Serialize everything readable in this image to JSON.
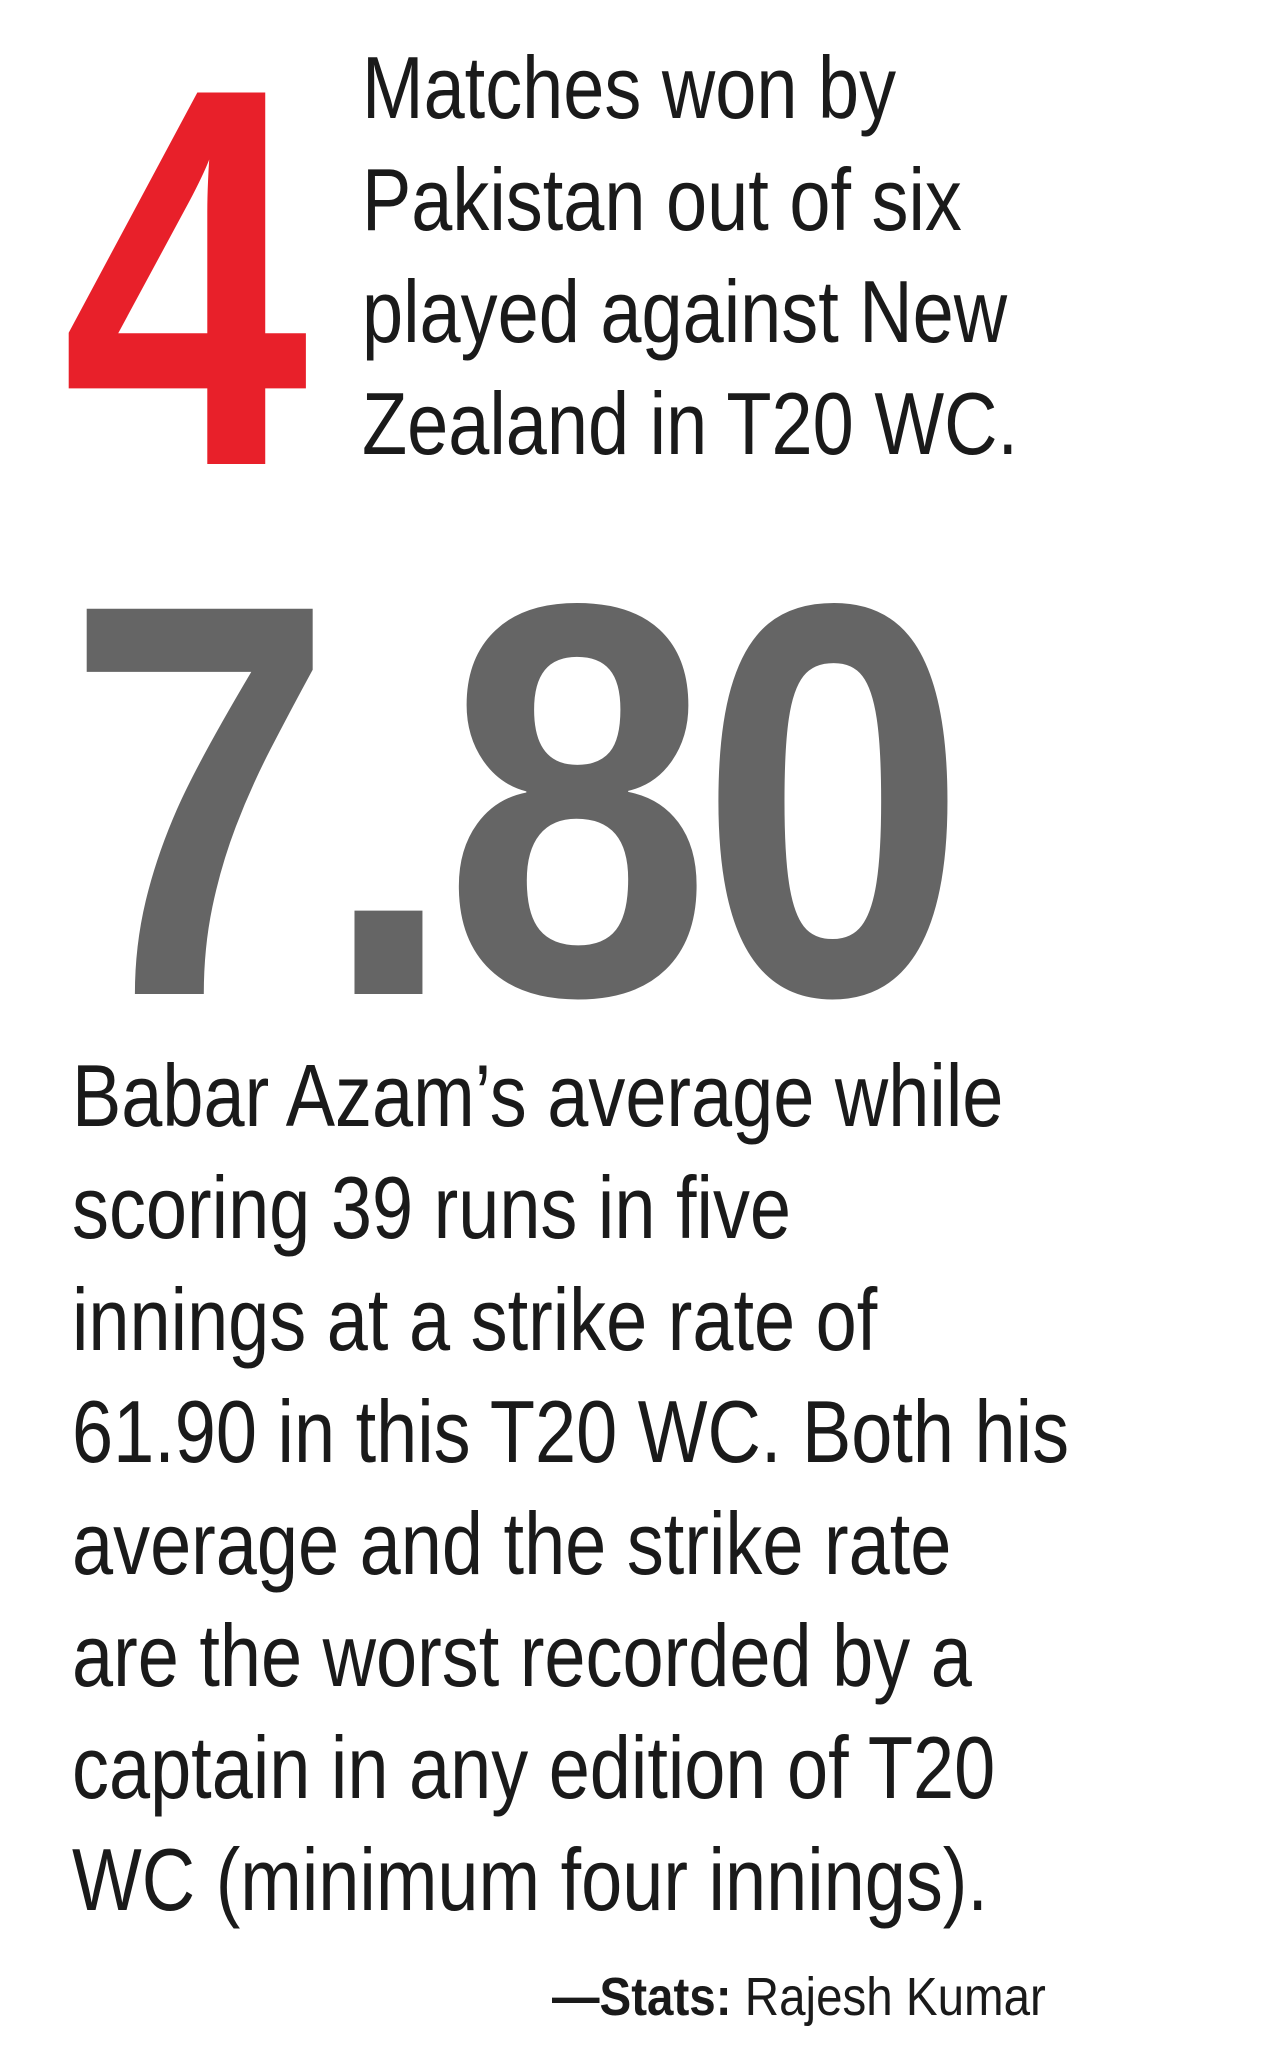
{
  "stat1": {
    "number": "4",
    "number_color": "#e8202a",
    "lines": [
      "Matches won by",
      "Pakistan out of six",
      "played against New",
      "Zealand in T20 WC."
    ]
  },
  "stat2": {
    "number": "7.80",
    "number_color": "#656565",
    "lines": [
      "Babar Azam’s average while",
      "scoring 39 runs in five",
      "innings at a strike rate of",
      "61.90 in this T20 WC. Both his",
      "average and the strike rate",
      "are the worst recorded by a",
      "captain in any edition of T20",
      "WC (minimum four innings)."
    ]
  },
  "credit": {
    "label": "—Stats:",
    "name": "Rajesh Kumar"
  }
}
